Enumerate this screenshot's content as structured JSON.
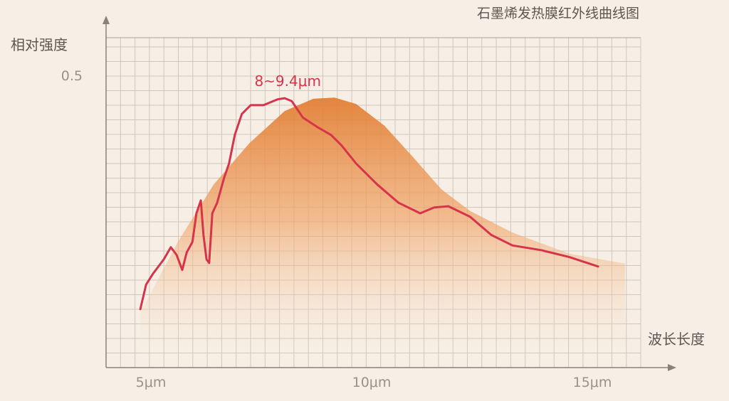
{
  "chart_data": {
    "type": "line",
    "title": "石墨烯发热膜红外线曲线图",
    "xlabel": "波长长度",
    "ylabel": "相对强度",
    "xlim": [
      4,
      16.1
    ],
    "ylim": [
      0,
      0.565
    ],
    "x_ticks": [
      {
        "value": 5,
        "label": "5μm"
      },
      {
        "value": 10,
        "label": "10μm"
      },
      {
        "value": 15,
        "label": "15μm"
      }
    ],
    "y_ticks": [
      {
        "value": 0.5,
        "label": "0.5"
      }
    ],
    "grid": true,
    "annotation": {
      "text": "8~9.4μm",
      "x": 8.1,
      "y": 0.49
    },
    "series": [
      {
        "kind": "area",
        "color": "#e58a45",
        "points": [
          [
            4.76,
            0.094
          ],
          [
            5.61,
            0.215
          ],
          [
            6.42,
            0.313
          ],
          [
            7.23,
            0.384
          ],
          [
            8.03,
            0.439
          ],
          [
            8.68,
            0.46
          ],
          [
            9.16,
            0.462
          ],
          [
            9.65,
            0.451
          ],
          [
            10.29,
            0.414
          ],
          [
            10.94,
            0.36
          ],
          [
            11.58,
            0.305
          ],
          [
            12.23,
            0.268
          ],
          [
            13.19,
            0.231
          ],
          [
            14.48,
            0.195
          ],
          [
            15.74,
            0.178
          ]
        ]
      },
      {
        "kind": "line",
        "color": "#d6344a",
        "points": [
          [
            4.76,
            0.1
          ],
          [
            4.89,
            0.142
          ],
          [
            5.05,
            0.161
          ],
          [
            5.29,
            0.185
          ],
          [
            5.45,
            0.206
          ],
          [
            5.58,
            0.193
          ],
          [
            5.71,
            0.167
          ],
          [
            5.81,
            0.197
          ],
          [
            5.94,
            0.215
          ],
          [
            6.03,
            0.264
          ],
          [
            6.13,
            0.286
          ],
          [
            6.19,
            0.227
          ],
          [
            6.26,
            0.185
          ],
          [
            6.32,
            0.179
          ],
          [
            6.39,
            0.264
          ],
          [
            6.5,
            0.282
          ],
          [
            6.66,
            0.325
          ],
          [
            6.77,
            0.349
          ],
          [
            6.9,
            0.398
          ],
          [
            7.06,
            0.434
          ],
          [
            7.26,
            0.449
          ],
          [
            7.55,
            0.449
          ],
          [
            7.87,
            0.459
          ],
          [
            8.03,
            0.461
          ],
          [
            8.19,
            0.456
          ],
          [
            8.44,
            0.428
          ],
          [
            8.76,
            0.412
          ],
          [
            9.08,
            0.398
          ],
          [
            9.32,
            0.38
          ],
          [
            9.65,
            0.349
          ],
          [
            10.13,
            0.313
          ],
          [
            10.61,
            0.282
          ],
          [
            11.1,
            0.264
          ],
          [
            11.42,
            0.274
          ],
          [
            11.74,
            0.276
          ],
          [
            12.23,
            0.258
          ],
          [
            12.71,
            0.227
          ],
          [
            13.19,
            0.209
          ],
          [
            13.84,
            0.201
          ],
          [
            14.48,
            0.189
          ],
          [
            15.13,
            0.173
          ]
        ]
      }
    ]
  }
}
